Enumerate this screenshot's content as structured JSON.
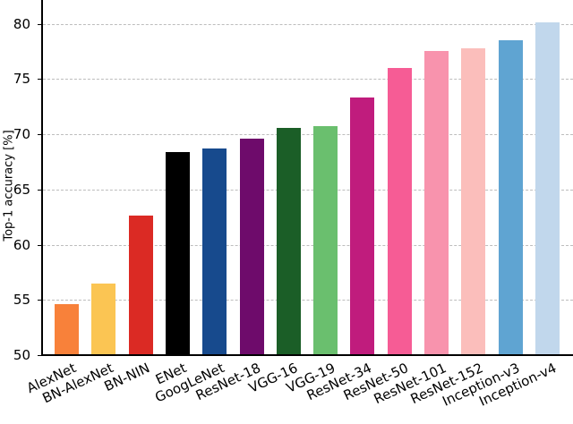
{
  "chart_data": {
    "type": "bar",
    "title": "",
    "xlabel": "",
    "ylabel": "Top-1 accuracy [%]",
    "ylim": [
      50,
      82
    ],
    "yticks": [
      50,
      55,
      60,
      65,
      70,
      75,
      80
    ],
    "grid": "horizontal dashed",
    "legend": "none",
    "categories": [
      "AlexNet",
      "BN-AlexNet",
      "BN-NIN",
      "ENet",
      "GoogLeNet",
      "ResNet-18",
      "VGG-16",
      "VGG-19",
      "ResNet-34",
      "ResNet-50",
      "ResNet-101",
      "ResNet-152",
      "Inception-v3",
      "Inception-v4"
    ],
    "values": [
      54.6,
      56.5,
      62.6,
      68.4,
      68.7,
      69.6,
      70.6,
      70.7,
      73.3,
      76.0,
      77.5,
      77.8,
      78.5,
      80.1
    ],
    "colors": [
      "#F8813A",
      "#FBC553",
      "#DB2A24",
      "#000000",
      "#174A8D",
      "#6E0B6B",
      "#1B5E27",
      "#6ABF6E",
      "#C01C7D",
      "#F65C95",
      "#F893AD",
      "#FBBEBB",
      "#5FA4D2",
      "#C1D7EC"
    ]
  }
}
